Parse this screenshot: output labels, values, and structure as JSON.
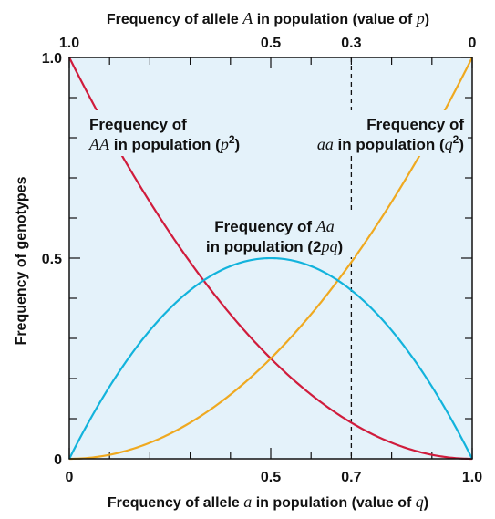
{
  "chart_data": {
    "type": "line",
    "title": "",
    "xlabel": "Frequency of allele a in population (value of q)",
    "xlabel_parts": [
      "Frequency of allele ",
      "a",
      " in population (value of ",
      "q",
      ")"
    ],
    "x2label": "Frequency of allele A in population (value of p)",
    "x2label_parts": [
      "Frequency of allele ",
      "A",
      " in population (value of ",
      "p",
      ")"
    ],
    "ylabel": "Frequency of genotypes",
    "xlim": [
      0,
      1
    ],
    "ylim": [
      0,
      1
    ],
    "x_ticks": [
      {
        "value": 0,
        "label": "0"
      },
      {
        "value": 0.5,
        "label": "0.5"
      },
      {
        "value": 0.7,
        "label": "0.7"
      },
      {
        "value": 1.0,
        "label": "1.0"
      }
    ],
    "x2_ticks": [
      {
        "q": 0,
        "label": "1.0"
      },
      {
        "q": 0.5,
        "label": "0.5"
      },
      {
        "q": 0.7,
        "label": "0.3"
      },
      {
        "q": 1.0,
        "label": "0"
      }
    ],
    "y_ticks": [
      {
        "value": 0,
        "label": "0"
      },
      {
        "value": 0.5,
        "label": "0.5"
      },
      {
        "value": 1.0,
        "label": "1.0"
      }
    ],
    "minor_tick_step": 0.1,
    "reference_line_x": 0.7,
    "series": [
      {
        "key": "AA",
        "formula": "(1-q)^2",
        "color": "#d01c3c",
        "x": [
          0,
          0.1,
          0.2,
          0.3,
          0.4,
          0.5,
          0.6,
          0.7,
          0.8,
          0.9,
          1.0
        ],
        "values": [
          1.0,
          0.81,
          0.64,
          0.49,
          0.36,
          0.25,
          0.16,
          0.09,
          0.04,
          0.01,
          0
        ]
      },
      {
        "key": "aa",
        "formula": "q^2",
        "color": "#efa920",
        "x": [
          0,
          0.1,
          0.2,
          0.3,
          0.4,
          0.5,
          0.6,
          0.7,
          0.8,
          0.9,
          1.0
        ],
        "values": [
          0,
          0.01,
          0.04,
          0.09,
          0.16,
          0.25,
          0.36,
          0.49,
          0.64,
          0.81,
          1.0
        ]
      },
      {
        "key": "Aa",
        "formula": "2q(1-q)",
        "color": "#12b3dc",
        "x": [
          0,
          0.1,
          0.2,
          0.3,
          0.4,
          0.5,
          0.6,
          0.7,
          0.8,
          0.9,
          1.0
        ],
        "values": [
          0,
          0.18,
          0.32,
          0.42,
          0.48,
          0.5,
          0.48,
          0.42,
          0.32,
          0.18,
          0
        ]
      }
    ],
    "annotations": [
      {
        "key": "AA",
        "line1": "Frequency of",
        "line2_italic": "AA",
        "line2_rest": " in population (",
        "var": "p",
        "sup": "2",
        "close": ")"
      },
      {
        "key": "aa",
        "line1": "Frequency of",
        "line2_italic": "aa",
        "line2_rest": " in population (",
        "var": "q",
        "sup": "2",
        "close": ")"
      },
      {
        "key": "Aa",
        "line1_pre": "Frequency of ",
        "line1_italic": "Aa",
        "line2_pre": "in population (2",
        "line2_italic": "pq",
        "line2_close": ")"
      }
    ],
    "grid": false,
    "legend": "none",
    "plot_background": "#e4f2fa"
  }
}
